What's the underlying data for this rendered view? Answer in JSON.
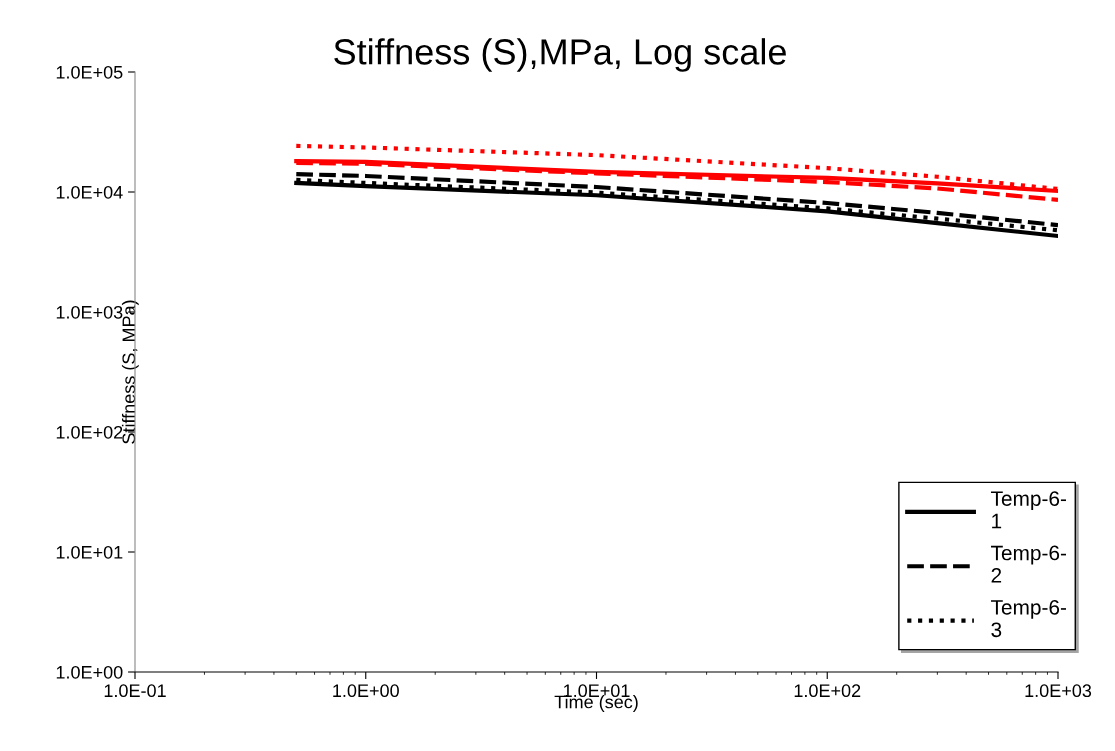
{
  "chart_data": {
    "type": "line",
    "title": "Stiffness (S),MPa, Log scale",
    "xlabel": "Time (sec)",
    "ylabel": "Stiffness (S, MPa)",
    "log": "xy",
    "grid": false,
    "legend": "bottom right",
    "xlim": [
      0.1,
      1000
    ],
    "xticks": [
      {
        "value": 0.1,
        "label": "1.0E-01"
      },
      {
        "value": 1,
        "label": "1.0E+00"
      },
      {
        "value": 10,
        "label": "1.0E+01"
      },
      {
        "value": 100,
        "label": "1.0E+02"
      },
      {
        "value": 1000,
        "label": "1.0E+03"
      }
    ],
    "ylim": [
      1,
      100000
    ],
    "yticks": [
      {
        "value": 1,
        "label": "1.0E+00"
      },
      {
        "value": 10,
        "label": "1.0E+01"
      },
      {
        "value": 100,
        "label": "1.0E+02"
      },
      {
        "value": 1000,
        "label": "1.0E+03"
      },
      {
        "value": 10000,
        "label": "1.0E+04"
      },
      {
        "value": 100000,
        "label": "1.0E+05"
      }
    ],
    "x": [
      0.5,
      1,
      10,
      100,
      300,
      1000
    ],
    "series": [
      {
        "name": "Temp-6-1",
        "color": "#000000",
        "line_style": "solid",
        "values": [
          11900,
          11200,
          9400,
          6900,
          5500,
          4300
        ]
      },
      {
        "name": "Temp-6-2",
        "color": "#000000",
        "line_style": "dashed",
        "values": [
          14100,
          13600,
          11000,
          8100,
          6700,
          5300
        ]
      },
      {
        "name": "Temp-6-3",
        "color": "#000000",
        "line_style": "dotted",
        "values": [
          12600,
          11900,
          9900,
          7300,
          6000,
          4800
        ]
      },
      {
        "color": "#ff0000",
        "line_style": "solid",
        "values": [
          18100,
          17800,
          14700,
          13100,
          11800,
          10200
        ]
      },
      {
        "color": "#ff0000",
        "line_style": "dashed",
        "values": [
          17500,
          17200,
          14300,
          12100,
          10700,
          8600
        ]
      },
      {
        "color": "#ff0000",
        "line_style": "dotted",
        "values": [
          24200,
          23500,
          20300,
          15800,
          13400,
          10600
        ]
      }
    ]
  }
}
